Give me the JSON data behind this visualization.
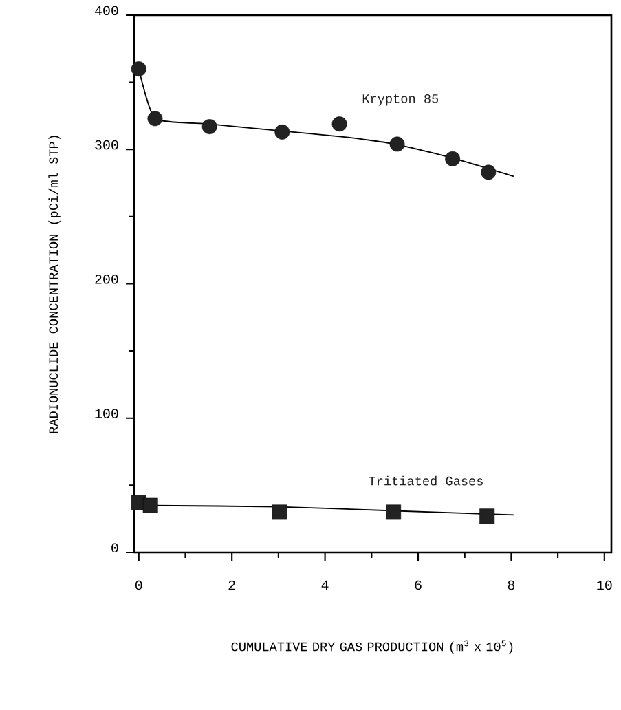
{
  "chart_data": {
    "type": "scatter",
    "xlabel": "CUMULATIVE DRY GAS PRODUCTION (m$^{3}$ x 10$^{5}$)",
    "ylabel": "RADIONUCLIDE CONCENTRATION (pCi/ml STP)",
    "xlim": [
      -0.1,
      10.15
    ],
    "ylim": [
      0,
      400
    ],
    "xticks": [
      0,
      {
        "value": 1,
        "label": null
      },
      2,
      {
        "value": 3,
        "label": null
      },
      4,
      {
        "value": 5,
        "label": null
      },
      6,
      {
        "value": 7,
        "label": null
      },
      8,
      {
        "value": 9,
        "label": null
      },
      10
    ],
    "yticks": [
      0,
      {
        "value": 50,
        "label": null
      },
      100,
      {
        "value": 150,
        "label": null
      },
      200,
      {
        "value": 250,
        "label": null
      },
      300,
      {
        "value": 350,
        "label": null
      },
      400
    ],
    "grid": false,
    "series": [
      {
        "name": "Krypton 85",
        "marker": "circle",
        "color": "#222222",
        "x": [
          0,
          0.35,
          1.52,
          3.08,
          4.31,
          5.55,
          6.74,
          7.51
        ],
        "values": [
          360,
          323,
          317,
          313,
          319,
          304,
          293,
          283
        ]
      },
      {
        "type": "line",
        "marker": "none",
        "color": "#000000",
        "x": [
          0,
          0.35,
          1.5,
          3,
          4.5,
          5.5,
          6.7,
          8.05
        ],
        "values": [
          360,
          323,
          319,
          314,
          309,
          304,
          294,
          280
        ]
      },
      {
        "name": "Tritiated Gases",
        "marker": "square",
        "color": "#222222",
        "x": [
          0,
          0.25,
          3.02,
          5.47,
          7.48
        ],
        "values": [
          37,
          35,
          30,
          30,
          27
        ]
      },
      {
        "type": "line",
        "marker": "none",
        "color": "#000000",
        "x": [
          0.3,
          3,
          5.5,
          8.05
        ],
        "values": [
          35,
          34,
          31,
          28
        ]
      }
    ]
  }
}
